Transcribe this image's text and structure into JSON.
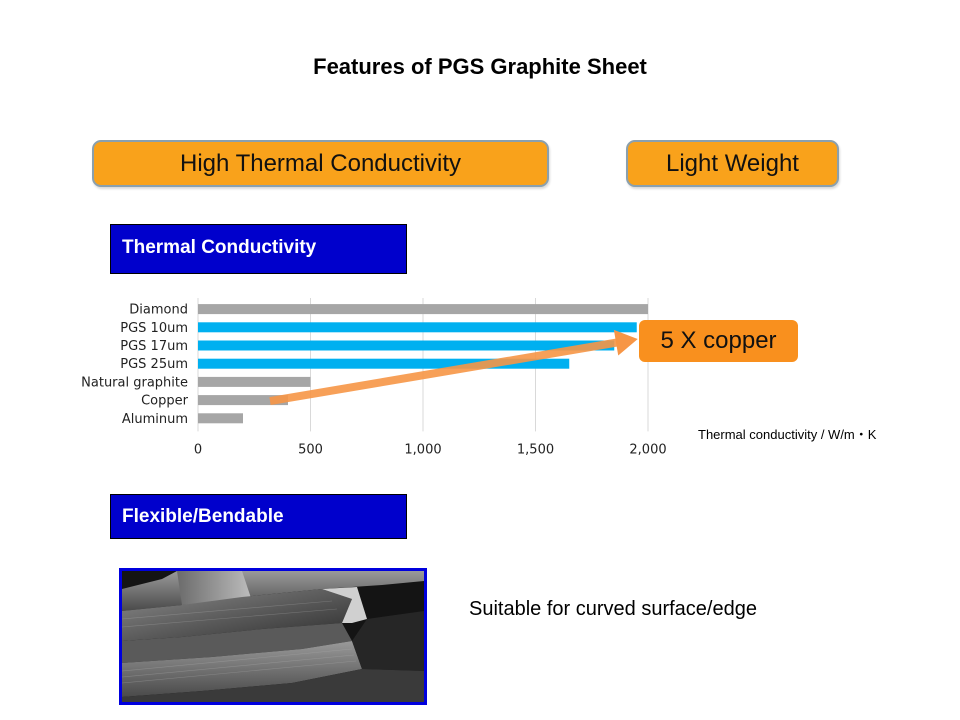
{
  "slide": {
    "title": "Features of PGS Graphite Sheet"
  },
  "features": {
    "high_thermal_conductivity": "High Thermal Conductivity",
    "light_weight": "Light Weight"
  },
  "sections": {
    "thermal_conductivity": "Thermal Conductivity",
    "flexible_bendable": "Flexible/Bendable"
  },
  "callout": {
    "text": "5 X copper"
  },
  "units_label": "Thermal conductivity / W/m・K",
  "photo_caption": "Suitable for curved surface/edge",
  "colors": {
    "orange": "#f9a21b",
    "section_blue": "#0000cc",
    "bar_gray": "#a6a6a6",
    "bar_cyan": "#00b0f0",
    "arrow_orange": "#f79646"
  },
  "chart_data": {
    "type": "bar",
    "orientation": "horizontal",
    "categories": [
      "Diamond",
      "PGS 10um",
      "PGS 17um",
      "PGS 25um",
      "Natural graphite",
      "Copper",
      "Aluminum"
    ],
    "values": [
      2000,
      1950,
      1850,
      1650,
      500,
      400,
      200
    ],
    "bar_colors": [
      "#a6a6a6",
      "#00b0f0",
      "#00b0f0",
      "#00b0f0",
      "#a6a6a6",
      "#a6a6a6",
      "#a6a6a6"
    ],
    "xlim": [
      0,
      2000
    ],
    "xticks": [
      0,
      500,
      1000,
      1500,
      2000
    ],
    "xtick_labels": [
      "0",
      "500",
      "1,000",
      "1,500",
      "2,000"
    ],
    "grid": true,
    "annotation": "5 X copper"
  }
}
